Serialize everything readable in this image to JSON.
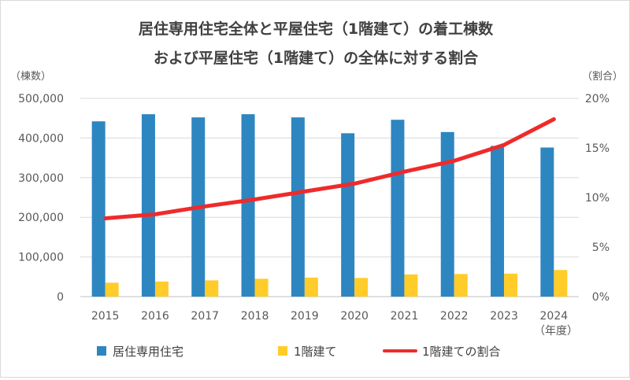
{
  "chart_data": {
    "type": "bar",
    "title_line1": "居住専用住宅全体と平屋住宅（1階建て）の着工棟数",
    "title_line2": "および平屋住宅（1階建て）の全体に対する割合",
    "y_left_unit": "（棟数）",
    "y_right_unit": "（割合）",
    "x_unit": "（年度）",
    "categories": [
      "2015",
      "2016",
      "2017",
      "2018",
      "2019",
      "2020",
      "2021",
      "2022",
      "2023",
      "2024"
    ],
    "ylim_left": [
      0,
      500000
    ],
    "ylim_right": [
      0,
      20
    ],
    "y_left_ticks": [
      "0",
      "100,000",
      "200,000",
      "300,000",
      "400,000",
      "500,000"
    ],
    "y_right_ticks": [
      "0%",
      "5%",
      "10%",
      "15%",
      "20%"
    ],
    "series": [
      {
        "name": "居住専用住宅",
        "type": "bar",
        "axis": "left",
        "color": "#2e86c1",
        "values": [
          442000,
          460000,
          452000,
          460000,
          452000,
          412000,
          446000,
          415000,
          380000,
          376000
        ]
      },
      {
        "name": "1階建て",
        "type": "bar",
        "axis": "left",
        "color": "#ffcc29",
        "values": [
          35000,
          38000,
          41000,
          45000,
          48000,
          47000,
          56000,
          57000,
          58000,
          67000
        ]
      },
      {
        "name": "1階建ての割合",
        "type": "line",
        "axis": "right",
        "color": "#ee2b2b",
        "values": [
          7.9,
          8.3,
          9.1,
          9.8,
          10.6,
          11.4,
          12.6,
          13.7,
          15.3,
          17.9
        ]
      }
    ],
    "grid": true,
    "legend_position": "bottom"
  }
}
